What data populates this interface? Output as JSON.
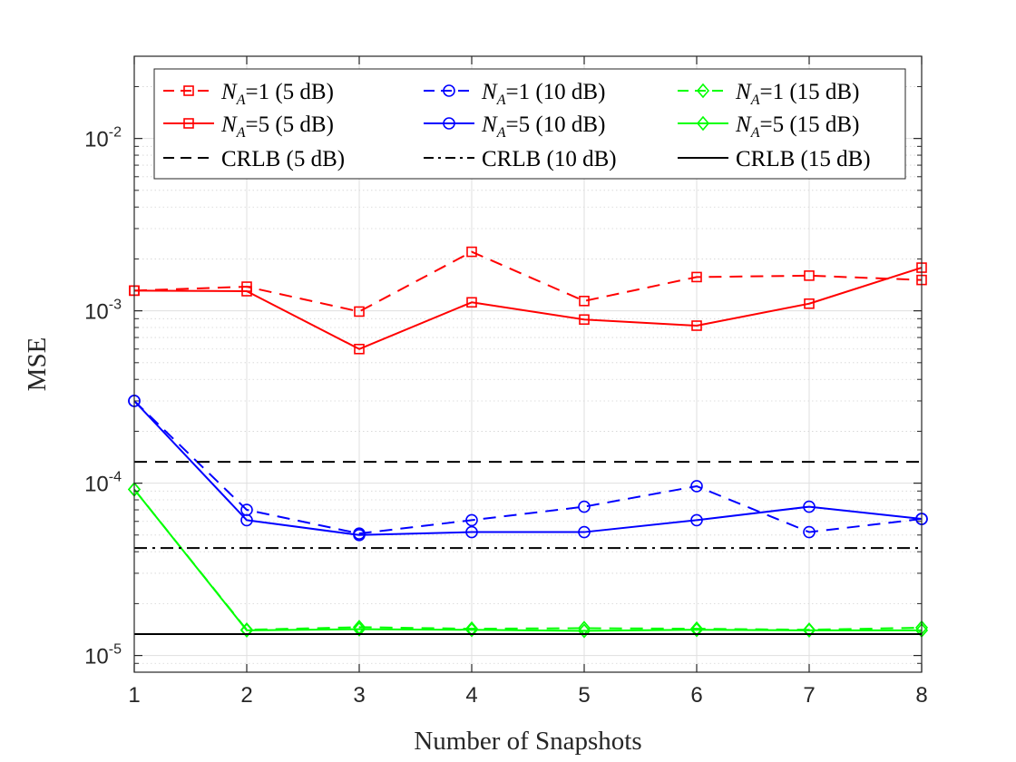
{
  "chart_data": {
    "type": "line",
    "xlabel": "Number of Snapshots",
    "ylabel": "MSE",
    "x": [
      1,
      2,
      3,
      4,
      5,
      6,
      7,
      8
    ],
    "xlim": [
      1,
      8
    ],
    "ylim": [
      8e-06,
      0.03
    ],
    "yscale": "log",
    "grid": true,
    "legend_placement": "top",
    "x_ticks": [
      "1",
      "2",
      "3",
      "4",
      "5",
      "6",
      "7",
      "8"
    ],
    "y_ticks": [
      {
        "value": 1e-05,
        "base": "10",
        "exp": "-5"
      },
      {
        "value": 0.0001,
        "base": "10",
        "exp": "-4"
      },
      {
        "value": 0.001,
        "base": "10",
        "exp": "-3"
      },
      {
        "value": 0.01,
        "base": "10",
        "exp": "-2"
      }
    ],
    "series": [
      {
        "name": "N_A=1 (5 dB)",
        "name_main": "N",
        "name_sub": "A",
        "name_rest": "=1 (5 dB)",
        "color": "#ff0000",
        "dash": "dashed",
        "marker": "square",
        "values": [
          0.00131,
          0.00138,
          0.00099,
          0.0022,
          0.00114,
          0.00157,
          0.0016,
          0.00151
        ]
      },
      {
        "name": "N_A=1 (10 dB)",
        "name_main": "N",
        "name_sub": "A",
        "name_rest": "=1 (10 dB)",
        "color": "#0000ff",
        "dash": "dashed",
        "marker": "circle",
        "values": [
          0.0003,
          7e-05,
          5.1e-05,
          6.1e-05,
          7.3e-05,
          9.6e-05,
          5.2e-05,
          6.2e-05
        ]
      },
      {
        "name": "N_A=1 (15 dB)",
        "name_main": "N",
        "name_sub": "A",
        "name_rest": "=1 (15 dB)",
        "color": "#00ff00",
        "dash": "dashed",
        "marker": "diamond",
        "values": [
          9.2e-05,
          1.41e-05,
          1.46e-05,
          1.43e-05,
          1.44e-05,
          1.43e-05,
          1.41e-05,
          1.45e-05
        ]
      },
      {
        "name": "N_A=5 (5 dB)",
        "name_main": "N",
        "name_sub": "A",
        "name_rest": "=5 (5 dB)",
        "color": "#ff0000",
        "dash": "solid",
        "marker": "square",
        "values": [
          0.00131,
          0.0013,
          0.0006,
          0.00112,
          0.00089,
          0.00082,
          0.0011,
          0.00178
        ]
      },
      {
        "name": "N_A=5 (10 dB)",
        "name_main": "N",
        "name_sub": "A",
        "name_rest": "=5 (10 dB)",
        "color": "#0000ff",
        "dash": "solid",
        "marker": "circle",
        "values": [
          0.0003,
          6.1e-05,
          5e-05,
          5.2e-05,
          5.2e-05,
          6.1e-05,
          7.3e-05,
          6.2e-05
        ]
      },
      {
        "name": "N_A=5 (15 dB)",
        "name_main": "N",
        "name_sub": "A",
        "name_rest": "=5 (15 dB)",
        "color": "#00ff00",
        "dash": "solid",
        "marker": "diamond",
        "values": [
          9.2e-05,
          1.4e-05,
          1.42e-05,
          1.41e-05,
          1.39e-05,
          1.41e-05,
          1.4e-05,
          1.4e-05
        ]
      },
      {
        "name": "CRLB (5 dB)",
        "name_main": "CRLB (5 dB)",
        "color": "#000000",
        "dash": "dashed",
        "marker": "none",
        "values": [
          0.000133,
          0.000133,
          0.000133,
          0.000133,
          0.000133,
          0.000133,
          0.000133,
          0.000133
        ]
      },
      {
        "name": "CRLB (10 dB)",
        "name_main": "CRLB (10 dB)",
        "color": "#000000",
        "dash": "dashdot",
        "marker": "none",
        "values": [
          4.2e-05,
          4.2e-05,
          4.2e-05,
          4.2e-05,
          4.2e-05,
          4.2e-05,
          4.2e-05,
          4.2e-05
        ]
      },
      {
        "name": "CRLB (15 dB)",
        "name_main": "CRLB (15 dB)",
        "color": "#000000",
        "dash": "solid",
        "marker": "none",
        "values": [
          1.33e-05,
          1.33e-05,
          1.33e-05,
          1.33e-05,
          1.33e-05,
          1.33e-05,
          1.33e-05,
          1.33e-05
        ]
      }
    ]
  }
}
